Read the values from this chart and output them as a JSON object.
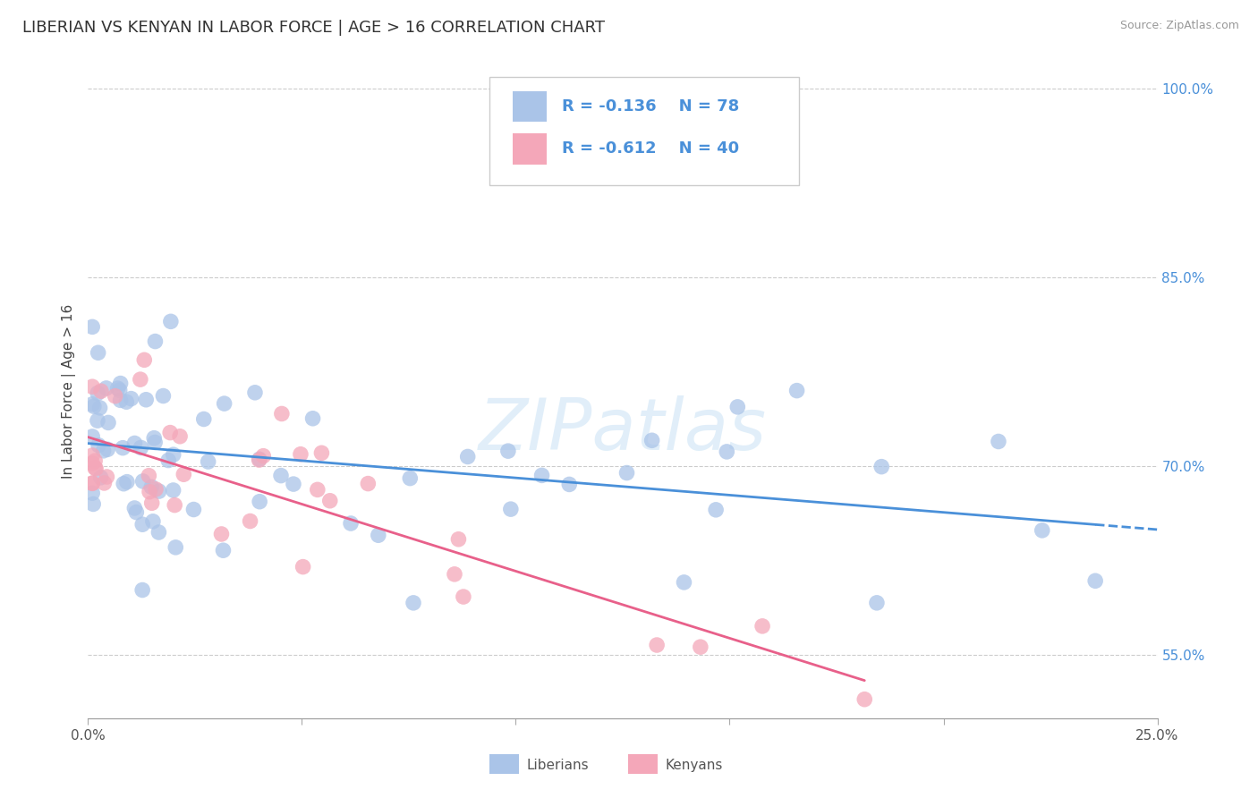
{
  "title": "LIBERIAN VS KENYAN IN LABOR FORCE | AGE > 16 CORRELATION CHART",
  "source_text": "Source: ZipAtlas.com",
  "ylabel": "In Labor Force | Age > 16",
  "xlim": [
    0.0,
    0.25
  ],
  "ylim": [
    0.5,
    1.02
  ],
  "xtick_vals": [
    0.0,
    0.05,
    0.1,
    0.15,
    0.2,
    0.25
  ],
  "xticklabels": [
    "0.0%",
    "",
    "",
    "",
    "",
    "25.0%"
  ],
  "ytick_vals": [
    0.55,
    0.7,
    0.85,
    1.0
  ],
  "yticklabels": [
    "55.0%",
    "70.0%",
    "85.0%",
    "100.0%"
  ],
  "grid_color": "#cccccc",
  "background_color": "#ffffff",
  "liberian_color": "#aac4e8",
  "kenyan_color": "#f4a7b9",
  "liberian_line_color": "#4a90d9",
  "kenyan_line_color": "#e8608a",
  "tick_color": "#4a90d9",
  "xtick_color": "#555555",
  "legend_R_color": "#4a90d9",
  "legend_text_color": "#333333",
  "legend_R1": "-0.136",
  "legend_N1": "78",
  "legend_R2": "-0.612",
  "legend_N2": "40",
  "legend_label1": "Liberians",
  "legend_label2": "Kenyans",
  "watermark": "ZIPatlas",
  "title_fontsize": 13,
  "axis_label_fontsize": 11,
  "tick_fontsize": 11,
  "legend_fontsize": 13,
  "source_fontsize": 9
}
